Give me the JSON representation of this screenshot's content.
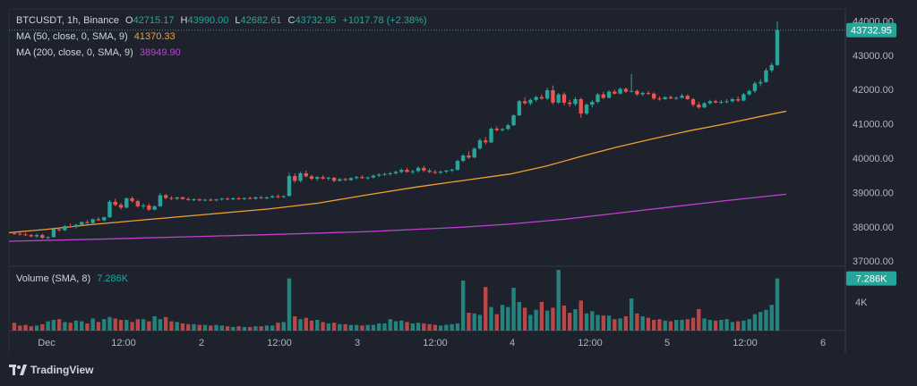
{
  "header": {
    "symbol": "BTCUSDT, 1h, Binance",
    "o_label": "O",
    "o_value": "42715.17",
    "h_label": "H",
    "h_value": "43990.00",
    "l_label": "L",
    "l_value": "42682.61",
    "c_label": "C",
    "c_value": "43732.95",
    "change": "+1017.78 (+2.38%)"
  },
  "ma50": {
    "label": "MA (50, close, 0, SMA, 9)",
    "value": "41370.33",
    "color": "#f0a030"
  },
  "ma200": {
    "label": "MA (200, close, 0, SMA, 9)",
    "value": "38949.90",
    "color": "#c040d0"
  },
  "volume_legend": {
    "label": "Volume (SMA, 8)",
    "value": "7.286K"
  },
  "last_price_badge": "43732.95",
  "volume_badge": "7.286K",
  "brand": "TradingView",
  "colors": {
    "up": "#26a69a",
    "down": "#ef5350",
    "background": "#1e222d",
    "grid": "#2a2e39",
    "text": "#b2b5be"
  },
  "chart_data": {
    "type": "candlestick",
    "price_axis_ticks": [
      "44000.00",
      "43000.00",
      "42000.00",
      "41000.00",
      "40000.00",
      "39000.00",
      "38000.00",
      "37000.00"
    ],
    "volume_axis_ticks": [
      "4K"
    ],
    "time_axis_ticks": [
      "Dec",
      "12:00",
      "2",
      "12:00",
      "3",
      "12:00",
      "4",
      "12:00",
      "5",
      "12:00",
      "6"
    ],
    "ylim": [
      36850,
      44350
    ],
    "candles": [
      [
        37820,
        37850,
        37760,
        37800
      ],
      [
        37800,
        37840,
        37750,
        37780
      ],
      [
        37780,
        37830,
        37730,
        37760
      ],
      [
        37760,
        37790,
        37700,
        37720
      ],
      [
        37720,
        37800,
        37680,
        37760
      ],
      [
        37760,
        37800,
        37650,
        37680
      ],
      [
        37680,
        37720,
        37640,
        37700
      ],
      [
        37700,
        37960,
        37690,
        37930
      ],
      [
        37930,
        37990,
        37860,
        37900
      ],
      [
        37900,
        38050,
        37880,
        38020
      ],
      [
        38020,
        38100,
        37980,
        38000
      ],
      [
        38000,
        38080,
        37950,
        38060
      ],
      [
        38060,
        38160,
        38020,
        38140
      ],
      [
        38140,
        38200,
        38080,
        38110
      ],
      [
        38110,
        38240,
        38090,
        38220
      ],
      [
        38220,
        38280,
        38170,
        38190
      ],
      [
        38190,
        38300,
        38160,
        38280
      ],
      [
        38280,
        38780,
        38260,
        38730
      ],
      [
        38730,
        38820,
        38600,
        38640
      ],
      [
        38640,
        38700,
        38500,
        38560
      ],
      [
        38560,
        38860,
        38540,
        38830
      ],
      [
        38830,
        38880,
        38700,
        38750
      ],
      [
        38750,
        38790,
        38560,
        38600
      ],
      [
        38600,
        38680,
        38520,
        38620
      ],
      [
        38620,
        38680,
        38460,
        38500
      ],
      [
        38500,
        38620,
        38480,
        38600
      ],
      [
        38600,
        38980,
        38580,
        38920
      ],
      [
        38920,
        38960,
        38800,
        38840
      ],
      [
        38840,
        38890,
        38780,
        38820
      ],
      [
        38820,
        38870,
        38780,
        38860
      ],
      [
        38860,
        38880,
        38790,
        38810
      ],
      [
        38810,
        38860,
        38760,
        38780
      ],
      [
        38780,
        38830,
        38750,
        38800
      ],
      [
        38800,
        38830,
        38740,
        38770
      ],
      [
        38770,
        38810,
        38740,
        38790
      ],
      [
        38790,
        38830,
        38750,
        38770
      ],
      [
        38770,
        38810,
        38740,
        38800
      ],
      [
        38800,
        38850,
        38760,
        38820
      ],
      [
        38820,
        38860,
        38780,
        38800
      ],
      [
        38800,
        38860,
        38770,
        38830
      ],
      [
        38830,
        38870,
        38790,
        38810
      ],
      [
        38810,
        38850,
        38770,
        38840
      ],
      [
        38840,
        38880,
        38800,
        38820
      ],
      [
        38820,
        38880,
        38790,
        38860
      ],
      [
        38860,
        38900,
        38810,
        38840
      ],
      [
        38840,
        38880,
        38800,
        38860
      ],
      [
        38860,
        38920,
        38830,
        38890
      ],
      [
        38890,
        38940,
        38840,
        38870
      ],
      [
        38870,
        38910,
        38830,
        38900
      ],
      [
        38900,
        39580,
        38880,
        39480
      ],
      [
        39480,
        39560,
        39280,
        39340
      ],
      [
        39340,
        39600,
        39300,
        39560
      ],
      [
        39560,
        39640,
        39440,
        39470
      ],
      [
        39470,
        39520,
        39360,
        39400
      ],
      [
        39400,
        39480,
        39340,
        39450
      ],
      [
        39450,
        39500,
        39380,
        39410
      ],
      [
        39410,
        39460,
        39350,
        39430
      ],
      [
        39430,
        39450,
        39300,
        39340
      ],
      [
        39340,
        39420,
        39320,
        39390
      ],
      [
        39390,
        39430,
        39330,
        39360
      ],
      [
        39360,
        39440,
        39340,
        39420
      ],
      [
        39420,
        39480,
        39380,
        39450
      ],
      [
        39450,
        39500,
        39400,
        39420
      ],
      [
        39420,
        39460,
        39380,
        39440
      ],
      [
        39440,
        39520,
        39410,
        39490
      ],
      [
        39490,
        39560,
        39450,
        39520
      ],
      [
        39520,
        39580,
        39480,
        39540
      ],
      [
        39540,
        39600,
        39490,
        39560
      ],
      [
        39560,
        39640,
        39520,
        39600
      ],
      [
        39600,
        39700,
        39560,
        39660
      ],
      [
        39660,
        39720,
        39580,
        39600
      ],
      [
        39600,
        39660,
        39540,
        39620
      ],
      [
        39620,
        39760,
        39590,
        39720
      ],
      [
        39720,
        39780,
        39600,
        39640
      ],
      [
        39640,
        39700,
        39560,
        39600
      ],
      [
        39600,
        39660,
        39540,
        39580
      ],
      [
        39580,
        39640,
        39540,
        39610
      ],
      [
        39610,
        39660,
        39560,
        39640
      ],
      [
        39640,
        39700,
        39600,
        39660
      ],
      [
        39660,
        39960,
        39640,
        39920
      ],
      [
        39920,
        40120,
        39880,
        40080
      ],
      [
        40080,
        40200,
        39980,
        40020
      ],
      [
        40020,
        40320,
        40000,
        40280
      ],
      [
        40280,
        40580,
        40250,
        40520
      ],
      [
        40520,
        40620,
        40400,
        40460
      ],
      [
        40460,
        40900,
        40440,
        40860
      ],
      [
        40860,
        40920,
        40780,
        40820
      ],
      [
        40820,
        40880,
        40780,
        40850
      ],
      [
        40850,
        41000,
        40820,
        40960
      ],
      [
        40960,
        41280,
        40940,
        41250
      ],
      [
        41250,
        41700,
        41220,
        41660
      ],
      [
        41660,
        41780,
        41560,
        41600
      ],
      [
        41600,
        41740,
        41540,
        41700
      ],
      [
        41700,
        41820,
        41640,
        41780
      ],
      [
        41780,
        41860,
        41700,
        41740
      ],
      [
        41740,
        42060,
        41700,
        41980
      ],
      [
        41980,
        42120,
        41560,
        41620
      ],
      [
        41620,
        41900,
        41580,
        41860
      ],
      [
        41860,
        41920,
        41540,
        41620
      ],
      [
        41620,
        41700,
        41500,
        41580
      ],
      [
        41580,
        41780,
        41520,
        41720
      ],
      [
        41720,
        41760,
        41180,
        41300
      ],
      [
        41300,
        41600,
        41260,
        41560
      ],
      [
        41560,
        41700,
        41480,
        41640
      ],
      [
        41640,
        41900,
        41600,
        41860
      ],
      [
        41860,
        41940,
        41720,
        41760
      ],
      [
        41760,
        41980,
        41740,
        41940
      ],
      [
        41940,
        42000,
        41860,
        41880
      ],
      [
        41880,
        42060,
        41860,
        42020
      ],
      [
        42020,
        42060,
        41900,
        41940
      ],
      [
        41940,
        42450,
        41920,
        41960
      ],
      [
        41960,
        42000,
        41820,
        41860
      ],
      [
        41860,
        41940,
        41820,
        41900
      ],
      [
        41900,
        41960,
        41840,
        41880
      ],
      [
        41880,
        41920,
        41700,
        41740
      ],
      [
        41740,
        41800,
        41680,
        41720
      ],
      [
        41720,
        41800,
        41700,
        41780
      ],
      [
        41780,
        41830,
        41720,
        41740
      ],
      [
        41740,
        41800,
        41700,
        41760
      ],
      [
        41760,
        41880,
        41740,
        41820
      ],
      [
        41820,
        41860,
        41700,
        41720
      ],
      [
        41720,
        41760,
        41500,
        41560
      ],
      [
        41560,
        41640,
        41440,
        41480
      ],
      [
        41480,
        41640,
        41460,
        41600
      ],
      [
        41600,
        41700,
        41560,
        41660
      ],
      [
        41660,
        41700,
        41600,
        41620
      ],
      [
        41620,
        41700,
        41580,
        41640
      ],
      [
        41640,
        41720,
        41600,
        41660
      ],
      [
        41660,
        41760,
        41620,
        41720
      ],
      [
        41720,
        41800,
        41640,
        41680
      ],
      [
        41680,
        41900,
        41660,
        41860
      ],
      [
        41860,
        42000,
        41820,
        41960
      ],
      [
        41960,
        42240,
        41900,
        42180
      ],
      [
        42180,
        42300,
        42100,
        42220
      ],
      [
        42220,
        42620,
        42200,
        42560
      ],
      [
        42560,
        42780,
        42500,
        42715
      ],
      [
        42715,
        43990,
        42683,
        43733
      ]
    ],
    "volumes": [
      1.1,
      0.7,
      0.8,
      0.6,
      0.7,
      0.9,
      1.3,
      1.5,
      1.6,
      1.2,
      1.1,
      1.4,
      1.3,
      1.0,
      1.7,
      1.2,
      1.6,
      1.9,
      1.7,
      1.5,
      1.5,
      1.2,
      1.6,
      1.6,
      1.3,
      2.0,
      1.6,
      1.9,
      1.3,
      1.2,
      1.0,
      0.9,
      0.9,
      0.8,
      0.8,
      0.7,
      0.8,
      0.7,
      0.6,
      0.5,
      0.6,
      0.5,
      0.5,
      0.6,
      0.6,
      0.7,
      0.7,
      1.1,
      1.2,
      7.3,
      2.0,
      1.6,
      1.8,
      1.4,
      1.5,
      1.2,
      1.0,
      1.1,
      0.9,
      0.9,
      0.8,
      0.8,
      0.7,
      0.8,
      0.8,
      1.0,
      1.0,
      1.6,
      1.3,
      1.4,
      1.2,
      1.0,
      1.1,
      1.0,
      0.9,
      0.8,
      0.7,
      0.8,
      0.9,
      1.0,
      7.0,
      2.5,
      2.4,
      2.2,
      6.1,
      3.3,
      2.3,
      3.6,
      3.3,
      6.0,
      4.0,
      3.2,
      2.2,
      2.9,
      4.0,
      2.8,
      3.2,
      8.5,
      3.5,
      2.5,
      3.0,
      4.2,
      2.4,
      2.7,
      2.2,
      2.1,
      2.1,
      1.6,
      1.7,
      2.0,
      4.5,
      2.4,
      2.0,
      1.8,
      1.5,
      1.6,
      1.4,
      1.3,
      1.5,
      1.5,
      1.6,
      1.8,
      3.0,
      1.7,
      1.5,
      1.4,
      1.5,
      1.6,
      1.2,
      1.3,
      1.4,
      1.6,
      2.3,
      2.6,
      2.9,
      3.6,
      7.3
    ],
    "ma50": [
      [
        0,
        37830
      ],
      [
        40,
        37920
      ],
      [
        90,
        38060
      ],
      [
        150,
        38200
      ],
      [
        220,
        38360
      ],
      [
        290,
        38520
      ],
      [
        345,
        38690
      ],
      [
        400,
        38930
      ],
      [
        455,
        39160
      ],
      [
        510,
        39360
      ],
      [
        560,
        39540
      ],
      [
        600,
        39770
      ],
      [
        640,
        40060
      ],
      [
        680,
        40330
      ],
      [
        720,
        40570
      ],
      [
        760,
        40800
      ],
      [
        800,
        41000
      ],
      [
        840,
        41220
      ],
      [
        868,
        41370
      ]
    ],
    "ma200": [
      [
        0,
        37580
      ],
      [
        100,
        37640
      ],
      [
        200,
        37710
      ],
      [
        300,
        37780
      ],
      [
        400,
        37860
      ],
      [
        500,
        37980
      ],
      [
        560,
        38080
      ],
      [
        620,
        38220
      ],
      [
        680,
        38400
      ],
      [
        740,
        38580
      ],
      [
        800,
        38760
      ],
      [
        868,
        38950
      ]
    ]
  }
}
